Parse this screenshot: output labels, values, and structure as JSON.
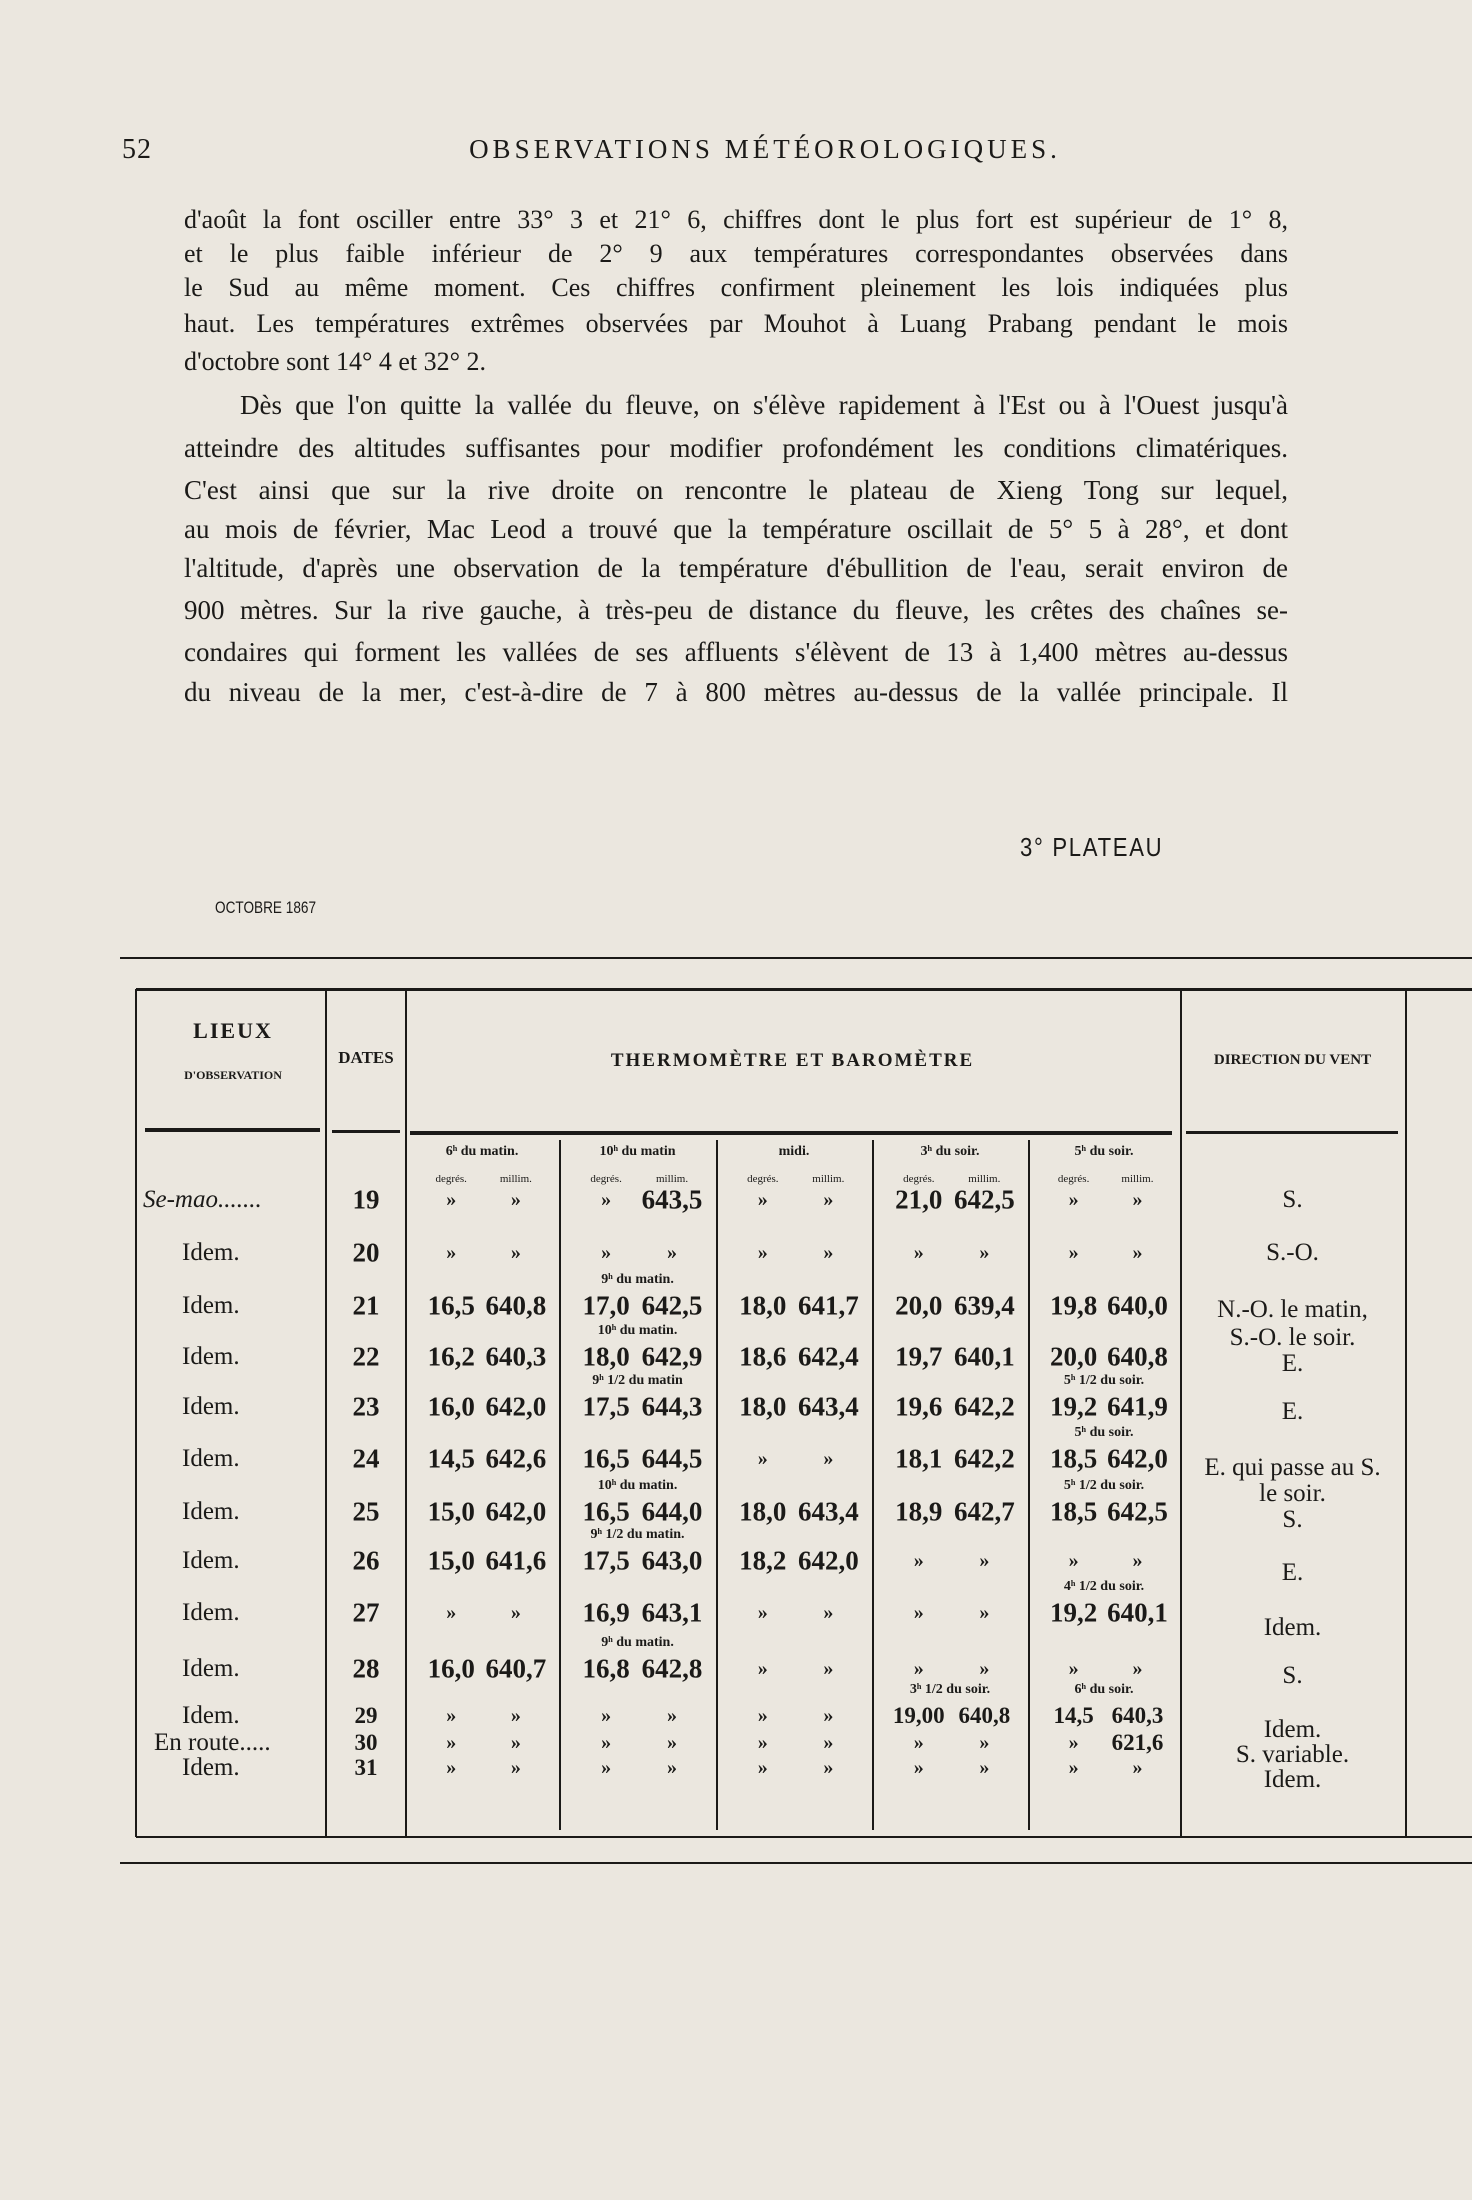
{
  "page": {
    "number": "52",
    "running_head": "OBSERVATIONS MÉTÉOROLOGIQUES.",
    "paragraph1": [
      "d'août la font osciller entre 33° 3 et 21° 6, chiffres dont le plus fort est supérieur de 1° 8,",
      "et le plus faible inférieur de 2° 9 aux températures correspondantes observées dans",
      "le Sud au même moment. Ces chiffres confirment pleinement les lois indiquées plus",
      "haut. Les températures extrêmes observées par Mouhot à Luang Prabang pendant le mois",
      "d'octobre sont 14° 4 et 32° 2."
    ],
    "paragraph2": [
      "Dès que l'on quitte la vallée du fleuve, on s'élève rapidement à l'Est ou à l'Ouest jusqu'à",
      "atteindre des altitudes suffisantes pour modifier profondément les conditions climatériques.",
      "C'est ainsi que sur la rive droite on rencontre le plateau de Xieng Tong sur lequel,",
      "au mois de février, Mac Leod a trouvé que la température oscillait de 5° 5 à 28°, et dont",
      "l'altitude, d'après une observation de la température d'ébullition de l'eau, serait environ de",
      "900 mètres. Sur la rive gauche, à très-peu de distance du fleuve, les crêtes des chaînes se-",
      "condaires qui forment les vallées de ses affluents s'élèvent de 13 à 1,400 mètres au-dessus",
      "du niveau de la mer, c'est-à-dire de 7 à 800 mètres au-dessus de la vallée principale. Il"
    ],
    "table_title": "3° PLATEAU",
    "month": "OCTOBRE 1867"
  },
  "table": {
    "headers": {
      "lieux": "LIEUX",
      "lieux_sub": "D'OBSERVATION",
      "dates": "DATES",
      "thermo": "THERMOMÈTRE ET BAROMÈTRE",
      "wind": "DIRECTION DU VENT"
    },
    "times": [
      "6ʰ du matin.",
      "10ʰ du matin",
      "midi.",
      "3ʰ du soir.",
      "5ʰ du soir."
    ],
    "unit_deg": "degrés.",
    "unit_mm": "millim.",
    "rows": [
      {
        "place": "Se-mao.......",
        "date": "19",
        "r": [
          [
            "»",
            "»",
            ""
          ],
          [
            "»",
            "643,5",
            ""
          ],
          [
            "»",
            "»",
            ""
          ],
          [
            "21,0",
            "642,5",
            ""
          ],
          [
            "»",
            "»",
            ""
          ]
        ]
      },
      {
        "place": "Idem.",
        "date": "20",
        "r": [
          [
            "»",
            "»",
            ""
          ],
          [
            "»",
            "»",
            ""
          ],
          [
            "»",
            "»",
            ""
          ],
          [
            "»",
            "»",
            ""
          ],
          [
            "»",
            "»",
            ""
          ]
        ]
      },
      {
        "place": "Idem.",
        "date": "21",
        "r": [
          [
            "16,5",
            "640,8",
            ""
          ],
          [
            "17,0",
            "642,5",
            "9ʰ du matin."
          ],
          [
            "18,0",
            "641,7",
            ""
          ],
          [
            "20,0",
            "639,4",
            ""
          ],
          [
            "19,8",
            "640,0",
            ""
          ]
        ]
      },
      {
        "place": "Idem.",
        "date": "22",
        "r": [
          [
            "16,2",
            "640,3",
            ""
          ],
          [
            "18,0",
            "642,9",
            "10ʰ du matin."
          ],
          [
            "18,6",
            "642,4",
            ""
          ],
          [
            "19,7",
            "640,1",
            ""
          ],
          [
            "20,0",
            "640,8",
            ""
          ]
        ]
      },
      {
        "place": "Idem.",
        "date": "23",
        "r": [
          [
            "16,0",
            "642,0",
            ""
          ],
          [
            "17,5",
            "644,3",
            "9ʰ 1/2 du matin"
          ],
          [
            "18,0",
            "643,4",
            ""
          ],
          [
            "19,6",
            "642,2",
            ""
          ],
          [
            "19,2",
            "641,9",
            "5ʰ 1/2 du soir."
          ]
        ]
      },
      {
        "place": "Idem.",
        "date": "24",
        "r": [
          [
            "14,5",
            "642,6",
            ""
          ],
          [
            "16,5",
            "644,5",
            ""
          ],
          [
            "»",
            "»",
            ""
          ],
          [
            "18,1",
            "642,2",
            ""
          ],
          [
            "18,5",
            "642,0",
            "5ʰ du soir."
          ]
        ]
      },
      {
        "place": "Idem.",
        "date": "25",
        "r": [
          [
            "15,0",
            "642,0",
            ""
          ],
          [
            "16,5",
            "644,0",
            "10ʰ du matin."
          ],
          [
            "18,0",
            "643,4",
            ""
          ],
          [
            "18,9",
            "642,7",
            ""
          ],
          [
            "18,5",
            "642,5",
            "5ʰ 1/2 du soir."
          ]
        ]
      },
      {
        "place": "Idem.",
        "date": "26",
        "r": [
          [
            "15,0",
            "641,6",
            ""
          ],
          [
            "17,5",
            "643,0",
            "9ʰ 1/2 du matin."
          ],
          [
            "18,2",
            "642,0",
            ""
          ],
          [
            "»",
            "»",
            ""
          ],
          [
            "»",
            "»",
            ""
          ]
        ]
      },
      {
        "place": "Idem.",
        "date": "27",
        "r": [
          [
            "»",
            "»",
            ""
          ],
          [
            "16,9",
            "643,1",
            ""
          ],
          [
            "»",
            "»",
            ""
          ],
          [
            "»",
            "»",
            ""
          ],
          [
            "19,2",
            "640,1",
            "4ʰ 1/2 du soir."
          ]
        ]
      },
      {
        "place": "Idem.",
        "date": "28",
        "r": [
          [
            "16,0",
            "640,7",
            ""
          ],
          [
            "16,8",
            "642,8",
            "9ʰ du matin."
          ],
          [
            "»",
            "»",
            ""
          ],
          [
            "»",
            "»",
            ""
          ],
          [
            "»",
            "»",
            ""
          ]
        ]
      },
      {
        "place": "Idem.",
        "date": "29",
        "r": [
          [
            "»",
            "»",
            ""
          ],
          [
            "»",
            "»",
            ""
          ],
          [
            "»",
            "»",
            ""
          ],
          [
            "19,00",
            "640,8",
            "3ʰ 1/2 du soir."
          ],
          [
            "14,5",
            "640,3",
            "6ʰ du soir."
          ]
        ]
      },
      {
        "place": "En route.....",
        "date": "30",
        "r": [
          [
            "»",
            "»",
            ""
          ],
          [
            "»",
            "»",
            ""
          ],
          [
            "»",
            "»",
            ""
          ],
          [
            "»",
            "»",
            ""
          ],
          [
            "»",
            "621,6",
            ""
          ]
        ]
      },
      {
        "place": "Idem.",
        "date": "31",
        "r": [
          [
            "»",
            "»",
            ""
          ],
          [
            "»",
            "»",
            ""
          ],
          [
            "»",
            "»",
            ""
          ],
          [
            "»",
            "»",
            ""
          ],
          [
            "»",
            "»",
            ""
          ]
        ]
      }
    ],
    "wind": [
      "S.",
      "S.-O.",
      "N.-O.  le matin,",
      "S.-O. le soir.",
      "E.",
      "E.",
      "E. qui passe au S.",
      "le soir.",
      "S.",
      "E.",
      "Idem.",
      "S.",
      "Idem.",
      "S. variable.",
      "Idem."
    ]
  }
}
